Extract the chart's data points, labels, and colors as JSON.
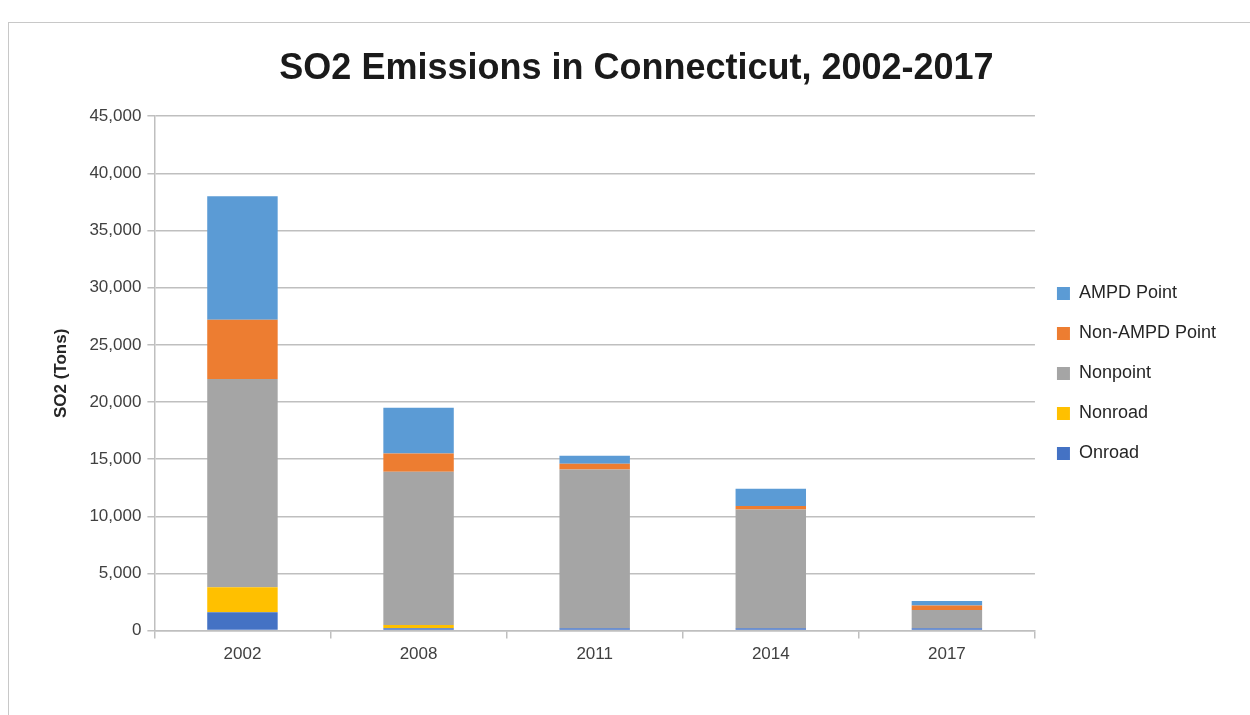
{
  "chart_data": {
    "type": "bar",
    "title": "SO2 Emissions in Connecticut, 2002-2017",
    "ylabel": "SO2 (Tons)",
    "categories": [
      "2002",
      "2008",
      "2011",
      "2014",
      "2017"
    ],
    "series": [
      {
        "name": "Onroad",
        "color": "#4472c4",
        "values": [
          1600,
          200,
          200,
          200,
          200
        ]
      },
      {
        "name": "Nonroad",
        "color": "#ffc000",
        "values": [
          2200,
          300,
          0,
          0,
          0
        ]
      },
      {
        "name": "Nonpoint",
        "color": "#a5a5a5",
        "values": [
          18200,
          13400,
          13900,
          10400,
          1600
        ]
      },
      {
        "name": "Non-AMPD Point",
        "color": "#ed7d31",
        "values": [
          5200,
          1600,
          500,
          300,
          400
        ]
      },
      {
        "name": "AMPD Point",
        "color": "#5b9bd5",
        "values": [
          10800,
          4000,
          700,
          1500,
          400
        ]
      }
    ],
    "stacked": true,
    "ylim": [
      0,
      45000
    ],
    "yticks": [
      0,
      {
        "value": 5000,
        "label": "5,000"
      },
      {
        "value": 10000,
        "label": "10,000"
      },
      {
        "value": 15000,
        "label": "15,000"
      },
      {
        "value": 20000,
        "label": "20,000"
      },
      {
        "value": 25000,
        "label": "25,000"
      },
      {
        "value": 30000,
        "label": "30,000"
      },
      {
        "value": 35000,
        "label": "35,000"
      },
      {
        "value": 40000,
        "label": "40,000"
      },
      {
        "value": 45000,
        "label": "45,000"
      }
    ],
    "grid": "y",
    "legend": "right"
  }
}
